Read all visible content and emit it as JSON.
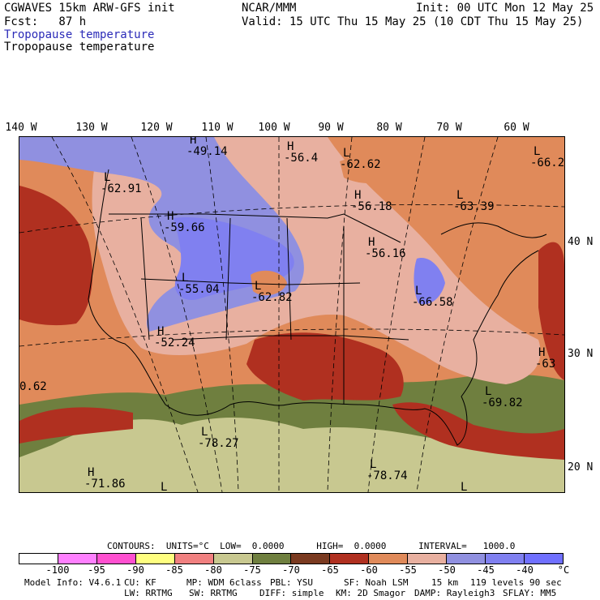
{
  "header": {
    "model_line": "CGWAVES 15km ARW-GFS init",
    "fcst_line": "Fcst:   87 h",
    "org": "NCAR/MMM",
    "init": "Init: 00 UTC Mon 12 May 25",
    "valid": "Valid: 15 UTC Thu 15 May 25 (10 CDT Thu 15 May 25)",
    "field_title_1": "Tropopause temperature",
    "field_title_2": "Tropopause temperature"
  },
  "axes": {
    "longitudes": [
      "140 W",
      "130 W",
      "120 W",
      "110 W",
      "100 W",
      "90 W",
      "80 W",
      "70 W",
      "60 W"
    ],
    "latitudes": [
      "40 N",
      "30 N",
      "20 N"
    ]
  },
  "map_labels": [
    {
      "marker": "H",
      "value": "-49.14"
    },
    {
      "marker": "H",
      "value": "-56.4"
    },
    {
      "marker": "L",
      "value": "-62.62"
    },
    {
      "marker": "L",
      "value": "-66.2"
    },
    {
      "marker": "L",
      "value": "-62.91"
    },
    {
      "marker": "H",
      "value": "-56.18"
    },
    {
      "marker": "L",
      "value": "-63.39"
    },
    {
      "marker": "H",
      "value": "-59.66"
    },
    {
      "marker": "H",
      "value": "-56.16"
    },
    {
      "marker": "L",
      "value": "-55.04"
    },
    {
      "marker": "L",
      "value": "-62.82"
    },
    {
      "marker": "L",
      "value": "-66.58"
    },
    {
      "marker": "H",
      "value": "-52.24"
    },
    {
      "marker": "H",
      "value": "-63"
    },
    {
      "marker": "",
      "value": "0.62"
    },
    {
      "marker": "L",
      "value": "-69.82"
    },
    {
      "marker": "L",
      "value": "-78.27"
    },
    {
      "marker": "H",
      "value": "-71.86"
    },
    {
      "marker": "L",
      "value": "-78.74"
    },
    {
      "marker": "L",
      "value": ""
    },
    {
      "marker": "L",
      "value": ""
    }
  ],
  "contours_line": "CONTOURS:  UNITS=°C  LOW=  0.0000      HIGH=  0.0000      INTERVAL=   1000.0",
  "colorbar": {
    "colors": [
      "#ffffff",
      "#ff80ff",
      "#ff50d0",
      "#ffff80",
      "#f08080",
      "#c8c890",
      "#6f7f3f",
      "#7a3a20",
      "#b03020",
      "#e08a5a",
      "#e8b0a0",
      "#9090e0",
      "#8080f0",
      "#7070ff"
    ],
    "labels": [
      "-100",
      "-95",
      "-90",
      "-85",
      "-80",
      "-75",
      "-70",
      "-65",
      "-60",
      "-55",
      "-50",
      "-45",
      "-40",
      "°C"
    ]
  },
  "model_info": {
    "line1": [
      "Model Info: V4.6.1",
      "CU: KF",
      "MP: WDM 6class",
      "PBL: YSU",
      "SF: Noah LSM",
      "15 km",
      "119 levels",
      "90 sec"
    ],
    "line2": [
      "LW: RRTMG",
      "SW: RRTMG",
      "DIFF: simple",
      "KM: 2D Smagor",
      "DAMP: Rayleigh3",
      "SFLAY: MM5"
    ]
  }
}
